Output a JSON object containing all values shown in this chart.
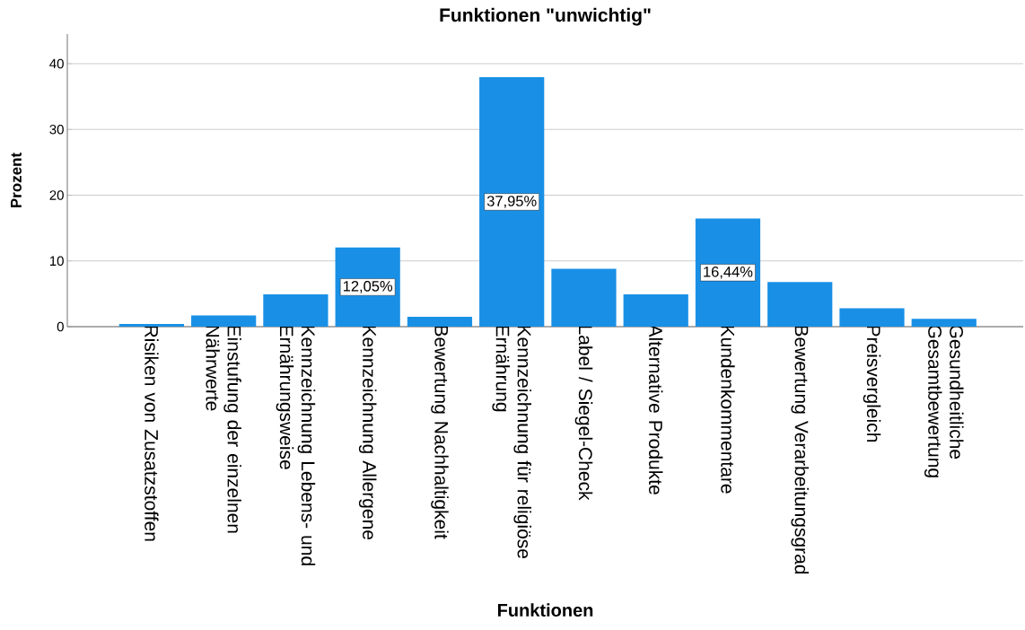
{
  "chart_data": {
    "type": "bar",
    "title": "Funktionen \"unwichtig\"",
    "xlabel": "Funktionen",
    "ylabel": "Prozent",
    "categories": [
      "Risiken von Zusatzstoffen",
      "Einstufung der einzelnen Nährwerte",
      "Kennzeichnung Lebens- und Ernährungsweise",
      "Kennzeichnung Allergene",
      "Bewertung Nachhaltigkeit",
      "Kennzeichnung für religiöse Ernährung",
      "Label / Siegel-Check",
      "Alternative Produkte",
      "Kundenkommentare",
      "Bewertung Verarbeitungsgrad",
      "Preisvergleich",
      "Gesundheitliche Gesamtbewertung"
    ],
    "values": [
      0.4,
      1.7,
      4.9,
      12.05,
      1.5,
      37.95,
      8.8,
      4.9,
      16.44,
      6.8,
      2.8,
      1.2
    ],
    "value_labels": [
      null,
      null,
      null,
      "12,05%",
      null,
      "37,95%",
      null,
      null,
      "16,44%",
      null,
      null,
      null
    ],
    "color": "#1990e6",
    "ylim": [
      0,
      44.5
    ],
    "yticks": [
      0,
      10,
      20,
      30,
      40
    ],
    "grid": "y"
  }
}
